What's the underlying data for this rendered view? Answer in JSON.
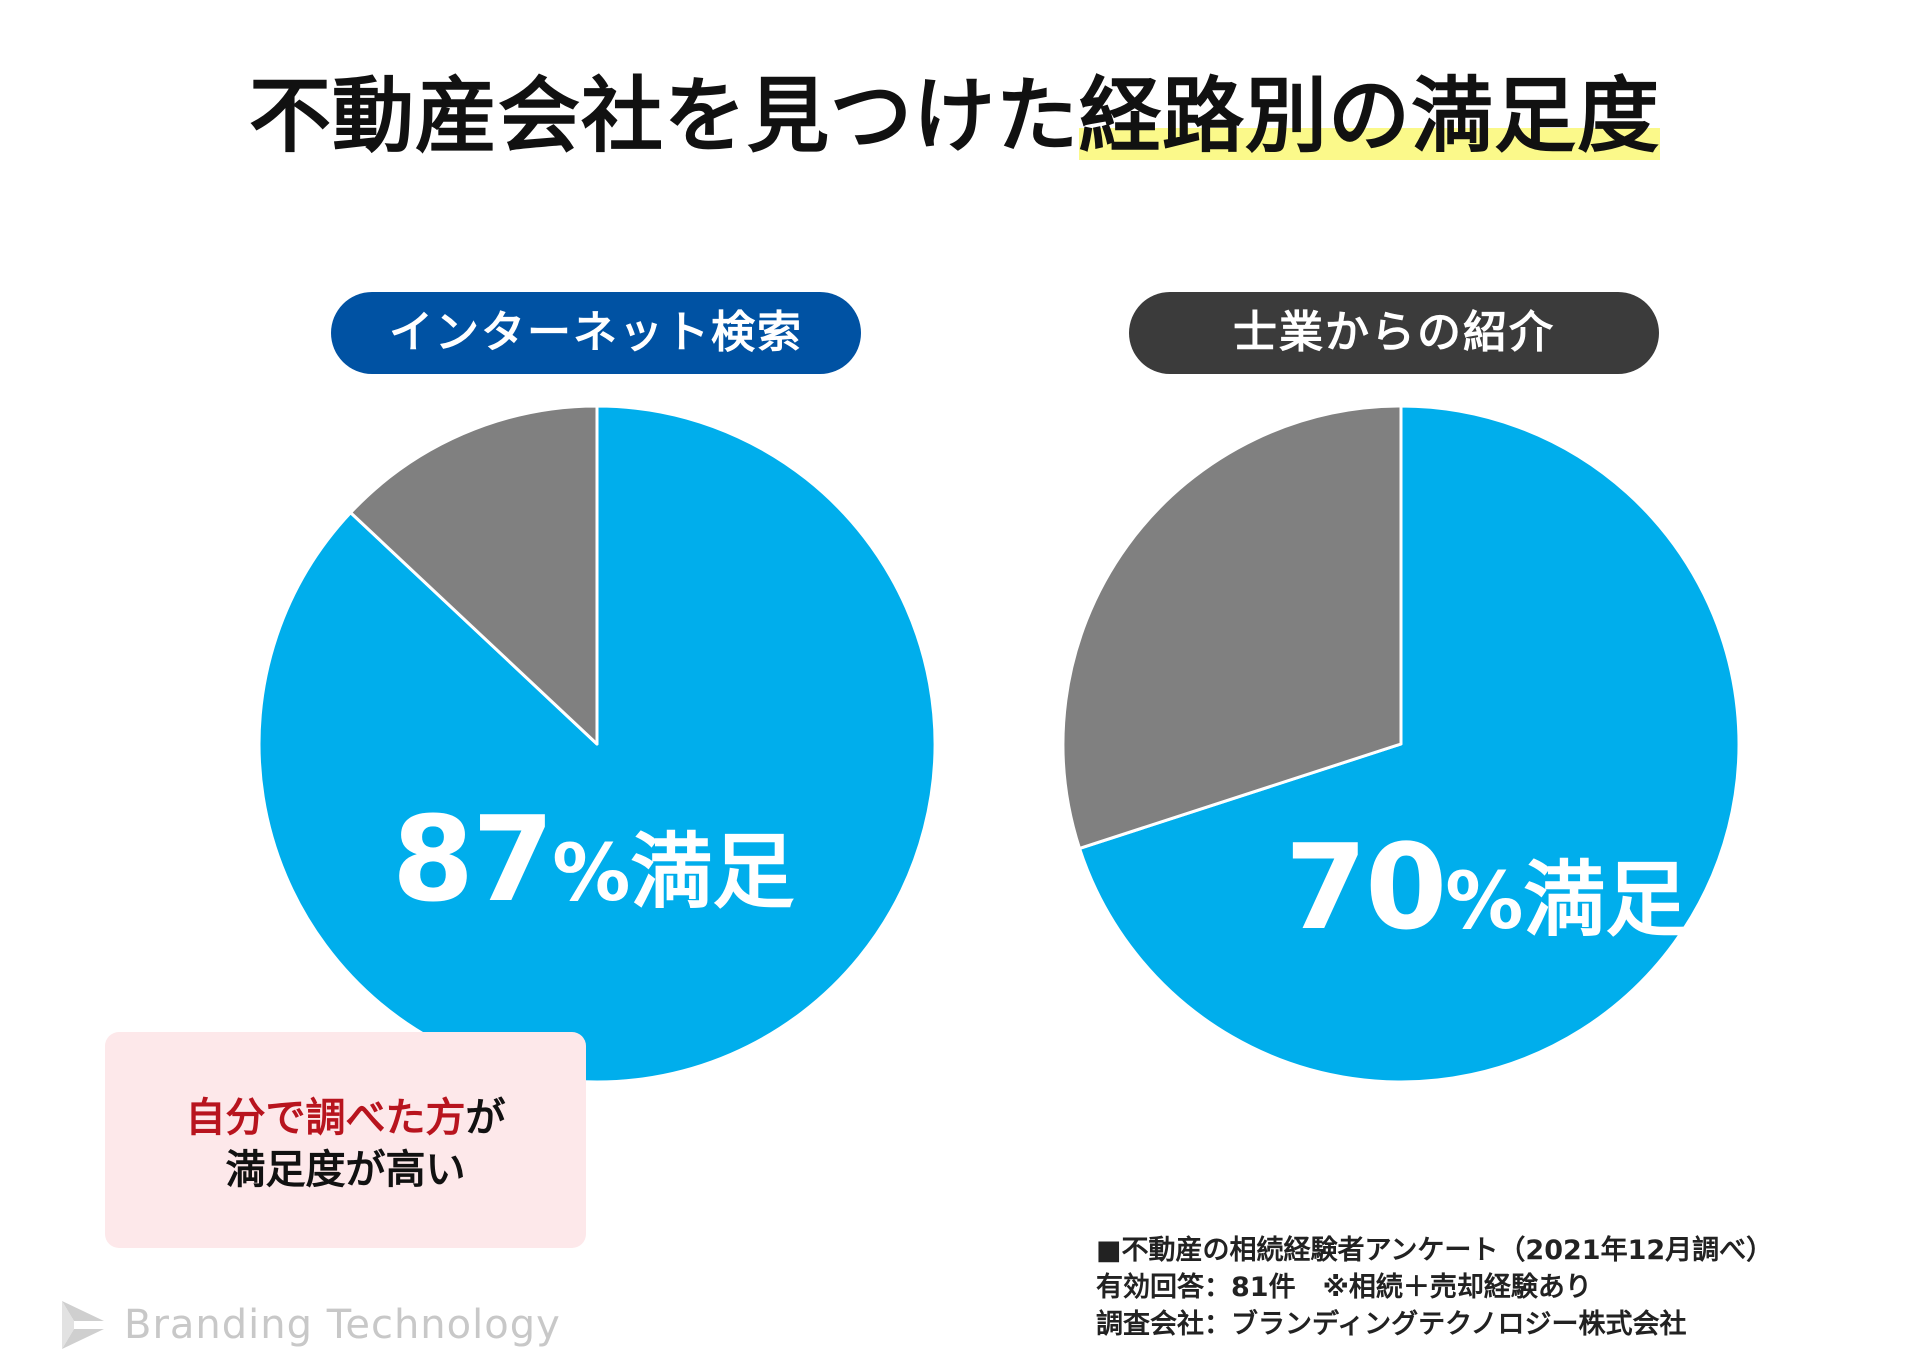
{
  "title": {
    "part1": "不動産会社を見つけた",
    "part2_highlight": "経路別の満足度",
    "highlight_color": "#fbf98a"
  },
  "chart_data": [
    {
      "type": "pie",
      "title": "インターネット検索",
      "categories": [
        "満足",
        ""
      ],
      "values": [
        87,
        13
      ],
      "colors": [
        "#00aeec",
        "#808080"
      ],
      "label": {
        "number": "87",
        "symbol": "%",
        "text": "満足"
      },
      "pill_color": "#0052a3"
    },
    {
      "type": "pie",
      "title": "士業からの紹介",
      "categories": [
        "満足",
        ""
      ],
      "values": [
        70,
        30
      ],
      "colors": [
        "#00aeec",
        "#808080"
      ],
      "label": {
        "number": "70",
        "symbol": "%",
        "text": "満足"
      },
      "pill_color": "#3b3b3b"
    }
  ],
  "callout": {
    "red_text": "自分で調べた方",
    "text1": "が",
    "text2": "満足度が高い"
  },
  "source": {
    "line1": "■不動産の相続経験者アンケート（2021年12月調べ）",
    "line2": "有効回答：81件　※相続＋売却経験あり",
    "line3": "調査会社：ブランディングテクノロジー株式会社"
  },
  "brand": {
    "name": "Branding Technology",
    "icon": "brand-logo-icon"
  }
}
